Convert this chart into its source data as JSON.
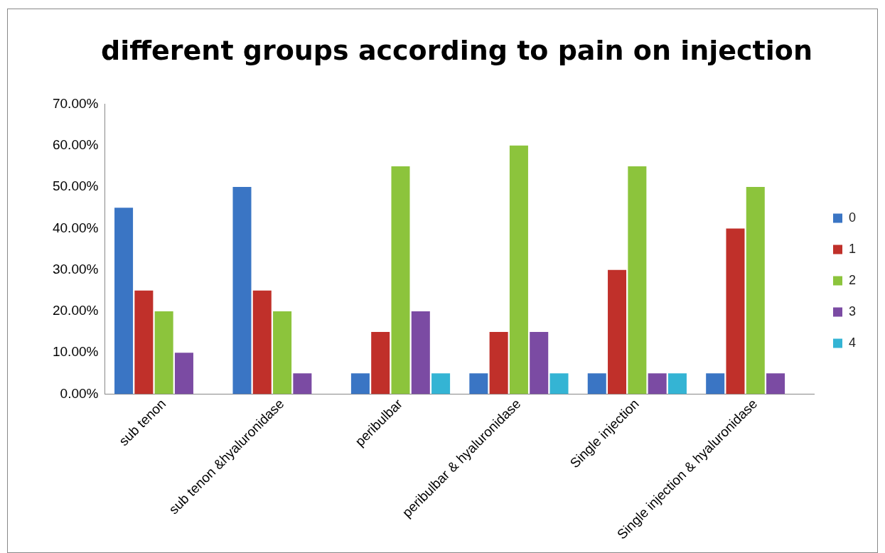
{
  "chart_data": {
    "type": "bar",
    "title": "different groups according to pain on injection",
    "categories": [
      "sub tenon",
      "sub tenon &hyaluronidase",
      "peribulbar",
      "peribulbar & hyaluronidase",
      "Single injection",
      "Single injection & hyaluronidase"
    ],
    "series": [
      {
        "name": "0",
        "color": "#3a75c4",
        "values": [
          45,
          50,
          5,
          5,
          5,
          5
        ]
      },
      {
        "name": "1",
        "color": "#c0302a",
        "values": [
          25,
          25,
          15,
          15,
          30,
          40
        ]
      },
      {
        "name": "2",
        "color": "#8cc43c",
        "values": [
          20,
          20,
          55,
          60,
          55,
          50
        ]
      },
      {
        "name": "3",
        "color": "#7b4ba3",
        "values": [
          10,
          5,
          20,
          15,
          5,
          5
        ]
      },
      {
        "name": "4",
        "color": "#34b4d4",
        "values": [
          0,
          0,
          5,
          5,
          5,
          0
        ]
      }
    ],
    "ylim": [
      0,
      70
    ],
    "yticks": [
      {
        "value": 0,
        "label": "0.00%"
      },
      {
        "value": 10,
        "label": "10.00%"
      },
      {
        "value": 20,
        "label": "20.00%"
      },
      {
        "value": 30,
        "label": "30.00%"
      },
      {
        "value": 40,
        "label": "40.00%"
      },
      {
        "value": 50,
        "label": "50.00%"
      },
      {
        "value": 60,
        "label": "60.00%"
      },
      {
        "value": 70,
        "label": "70.00%"
      }
    ],
    "grid": false,
    "legend": "right"
  }
}
